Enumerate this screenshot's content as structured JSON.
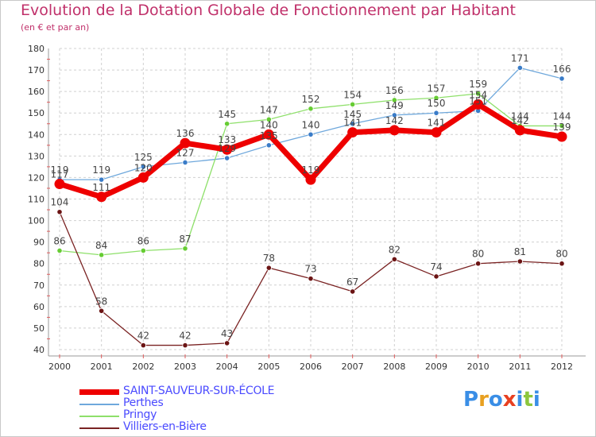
{
  "title": "Evolution de la Dotation Globale de Fonctionnement par Habitant",
  "subtitle": "(en € et par an)",
  "logo": {
    "text": "Proxiti",
    "colors": [
      "#3a8ee6",
      "#e8a020",
      "#3a8ee6",
      "#e84020",
      "#3a8ee6",
      "#8cc63e",
      "#3a8ee6"
    ]
  },
  "chart_data": {
    "type": "line",
    "title": "Evolution de la Dotation Globale de Fonctionnement par Habitant",
    "subtitle": "(en € et par an)",
    "xlabel": "",
    "ylabel": "",
    "x": [
      "2000",
      "2001",
      "2002",
      "2003",
      "2004",
      "2005",
      "2006",
      "2007",
      "2008",
      "2009",
      "2010",
      "2011",
      "2012"
    ],
    "yticks": [
      40,
      50,
      60,
      70,
      80,
      90,
      100,
      110,
      120,
      130,
      140,
      150,
      160,
      170,
      180
    ],
    "ylim": [
      40,
      180
    ],
    "grid": true,
    "legend_position": "bottom-left",
    "series": [
      {
        "name": "SAINT-SAUVEUR-SUR-ÉCOLE",
        "color": "#ee0000",
        "width": 7,
        "dot": "#ee0000",
        "values": [
          117,
          111,
          120,
          136,
          133,
          140,
          119,
          141,
          142,
          141,
          154,
          142,
          139
        ]
      },
      {
        "name": "Perthes",
        "color": "#6fa8dc",
        "width": 1.3,
        "dot": "#3a7cc8",
        "values": [
          119,
          119,
          125,
          127,
          129,
          135,
          140,
          145,
          149,
          150,
          151,
          171,
          166
        ]
      },
      {
        "name": "Pringy",
        "color": "#8ee06a",
        "width": 1.3,
        "dot": "#66cc33",
        "values": [
          86,
          84,
          86,
          87,
          145,
          147,
          152,
          154,
          156,
          157,
          159,
          144,
          144
        ]
      },
      {
        "name": "Villiers-en-Bière",
        "color": "#7a2323",
        "width": 1.3,
        "dot": "#6b1414",
        "values": [
          104,
          58,
          42,
          42,
          43,
          78,
          73,
          67,
          82,
          74,
          80,
          81,
          80
        ]
      }
    ]
  }
}
